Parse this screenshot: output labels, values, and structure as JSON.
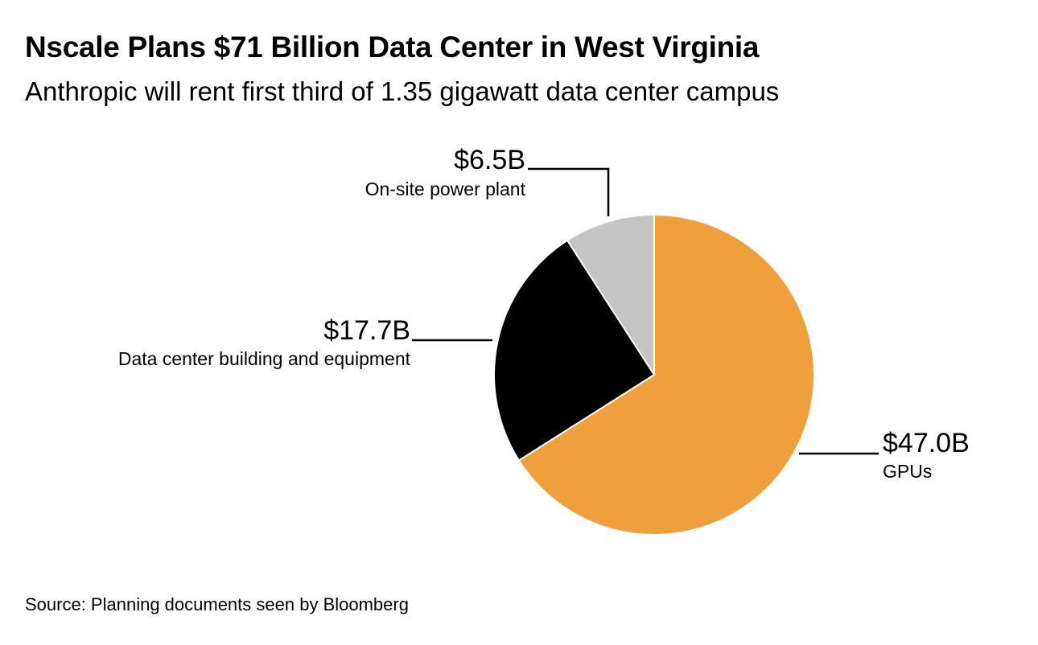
{
  "title": "Nscale Plans $71 Billion Data Center in West Virginia",
  "subtitle": "Anthropic will rent first third of 1.35 gigawatt data center campus",
  "source": "Source: Planning documents seen by Bloomberg",
  "chart_data": {
    "type": "pie",
    "title": "Nscale Plans $71 Billion Data Center in West Virginia",
    "subtitle": "Anthropic will rent first third of 1.35 gigawatt data center campus",
    "slices": [
      {
        "label": "GPUs",
        "value": 47.0,
        "value_label": "$47.0B",
        "color": "#EFA03C"
      },
      {
        "label": "Data center building and equipment",
        "value": 17.7,
        "value_label": "$17.7B",
        "color": "#000000"
      },
      {
        "label": "On-site power plant",
        "value": 6.5,
        "value_label": "$6.5B",
        "color": "#C4C4C4"
      }
    ],
    "start_angle": "12 o'clock",
    "direction": "clockwise",
    "legend": "none (callout labels)"
  }
}
